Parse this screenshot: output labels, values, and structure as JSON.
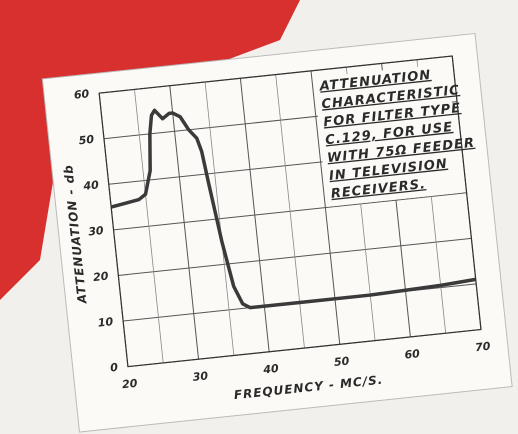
{
  "chart_data": {
    "type": "line",
    "title": [
      "ATTENUATION",
      "CHARACTERISTIC",
      "FOR FILTER TYPE",
      "C.129, FOR USE",
      "WITH 75Ω FEEDER",
      "IN TELEVISION",
      "RECEIVERS."
    ],
    "x_label": "FREQUENCY - MC/S.",
    "y_label": "ATTENUATION - db",
    "x": [
      20,
      24,
      25,
      26,
      26.5,
      27,
      27.5,
      28.5,
      29.5,
      30,
      31,
      32,
      33,
      33.5,
      34,
      35,
      36,
      37,
      38,
      45,
      55,
      65,
      70
    ],
    "values": [
      35,
      36,
      37,
      42,
      50,
      54,
      55,
      53,
      54,
      54,
      53,
      50,
      48,
      45,
      38,
      25,
      15,
      11,
      10,
      10,
      10,
      10.5,
      11
    ],
    "color": "#3a3a3a",
    "xlim": [
      20,
      70
    ],
    "xticks": [
      20,
      30,
      40,
      50,
      60,
      70
    ],
    "ylim": [
      0,
      60
    ],
    "yticks": [
      0,
      10,
      20,
      30,
      40,
      50,
      60
    ],
    "grid": true
  }
}
